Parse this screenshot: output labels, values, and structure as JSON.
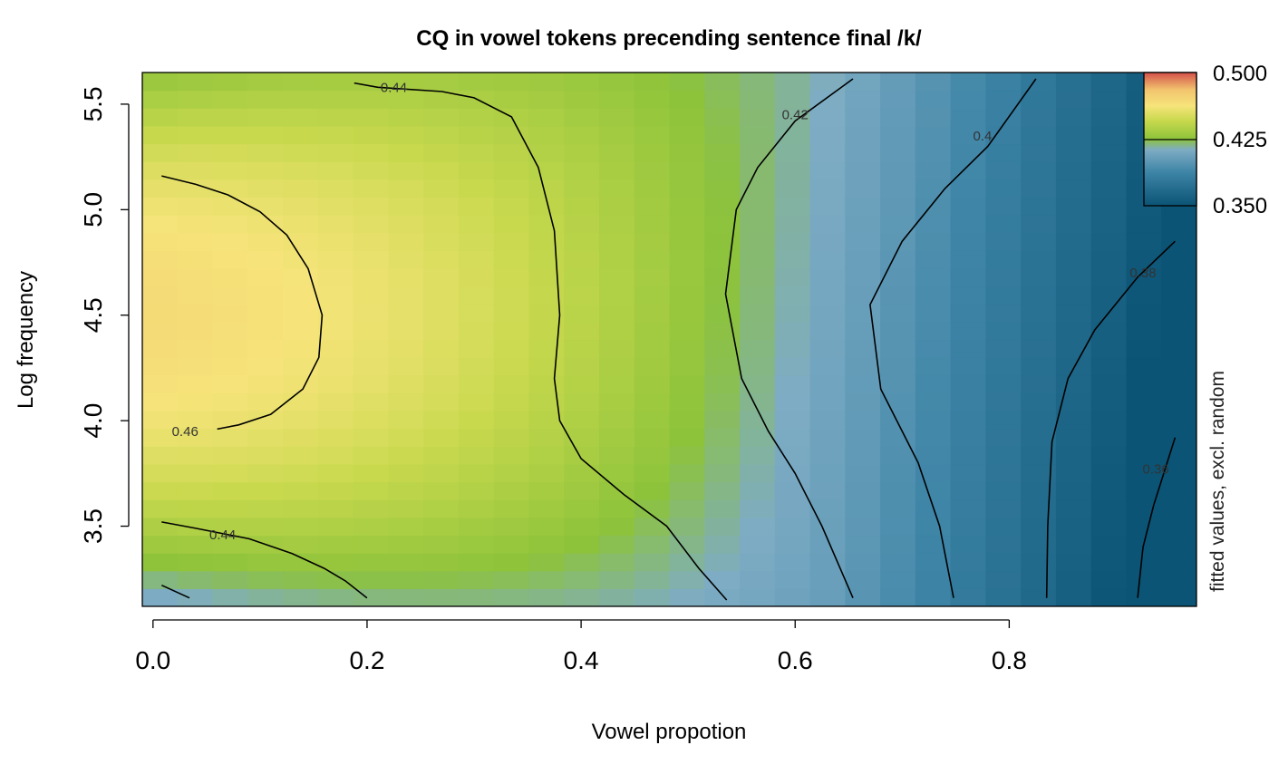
{
  "chart_data": {
    "type": "heatmap",
    "title": "CQ in vowel tokens precending sentence final /k/",
    "xlabel": "Vowel propotion",
    "ylabel": "Log frequency",
    "side_label": "fitted values, excl. random",
    "xlim": [
      -0.01,
      0.975
    ],
    "ylim": [
      3.12,
      5.65
    ],
    "x_ticks": [
      0.0,
      0.2,
      0.4,
      0.6,
      0.8
    ],
    "x_tick_labels": [
      "0.0",
      "0.2",
      "0.4",
      "0.6",
      "0.8"
    ],
    "y_ticks": [
      3.5,
      4.0,
      4.5,
      5.0,
      5.5
    ],
    "y_tick_labels": [
      "3.5",
      "4.0",
      "4.5",
      "5.0",
      "5.5"
    ],
    "color_scale": {
      "min": 0.35,
      "max": 0.5,
      "ticks": [
        0.5,
        0.425,
        0.35
      ],
      "tick_labels": [
        "0.500",
        "0.425",
        "0.350"
      ],
      "colors": [
        "#0b5475",
        "#3d84a6",
        "#7eacc4",
        "#8dc33a",
        "#c9d94e",
        "#f6e47a",
        "#f2c46e",
        "#d4504a"
      ]
    },
    "contours": [
      {
        "level": 0.46,
        "label": "0.46",
        "points": [
          [
            0.008,
            5.16
          ],
          [
            0.04,
            5.12
          ],
          [
            0.07,
            5.07
          ],
          [
            0.1,
            4.99
          ],
          [
            0.125,
            4.88
          ],
          [
            0.145,
            4.72
          ],
          [
            0.158,
            4.5
          ],
          [
            0.155,
            4.3
          ],
          [
            0.14,
            4.15
          ],
          [
            0.11,
            4.03
          ],
          [
            0.08,
            3.98
          ],
          [
            0.06,
            3.96
          ]
        ],
        "label_at": [
          0.03,
          3.95
        ]
      },
      {
        "level": 0.44,
        "label": "0.44",
        "points": [
          [
            0.188,
            5.6
          ],
          [
            0.21,
            5.58
          ],
          [
            0.27,
            5.56
          ],
          [
            0.3,
            5.53
          ],
          [
            0.335,
            5.44
          ],
          [
            0.36,
            5.2
          ],
          [
            0.375,
            4.9
          ],
          [
            0.38,
            4.5
          ],
          [
            0.375,
            4.2
          ],
          [
            0.38,
            4.0
          ],
          [
            0.4,
            3.82
          ],
          [
            0.44,
            3.65
          ],
          [
            0.48,
            3.5
          ],
          [
            0.51,
            3.3
          ],
          [
            0.536,
            3.15
          ]
        ],
        "label_at": [
          0.225,
          5.58
        ]
      },
      {
        "level": 0.44,
        "label": "0.44",
        "points": [
          [
            0.008,
            3.52
          ],
          [
            0.04,
            3.49
          ],
          [
            0.09,
            3.44
          ],
          [
            0.13,
            3.37
          ],
          [
            0.16,
            3.3
          ],
          [
            0.18,
            3.24
          ],
          [
            0.2,
            3.16
          ]
        ],
        "label_at": [
          0.065,
          3.46
        ]
      },
      {
        "level": 0.44,
        "label": "",
        "points": [
          [
            0.008,
            3.22
          ],
          [
            0.034,
            3.16
          ]
        ],
        "label_at": null
      },
      {
        "level": 0.42,
        "label": "0.42",
        "points": [
          [
            0.654,
            5.62
          ],
          [
            0.6,
            5.42
          ],
          [
            0.565,
            5.2
          ],
          [
            0.545,
            5.0
          ],
          [
            0.535,
            4.6
          ],
          [
            0.55,
            4.2
          ],
          [
            0.575,
            3.95
          ],
          [
            0.6,
            3.75
          ],
          [
            0.625,
            3.5
          ],
          [
            0.654,
            3.16
          ]
        ],
        "label_at": [
          0.6,
          5.45
        ]
      },
      {
        "level": 0.4,
        "label": "0.4",
        "points": [
          [
            0.825,
            5.62
          ],
          [
            0.78,
            5.3
          ],
          [
            0.74,
            5.1
          ],
          [
            0.7,
            4.85
          ],
          [
            0.67,
            4.55
          ],
          [
            0.68,
            4.15
          ],
          [
            0.715,
            3.8
          ],
          [
            0.735,
            3.5
          ],
          [
            0.748,
            3.16
          ]
        ],
        "label_at": [
          0.775,
          5.35
        ]
      },
      {
        "level": 0.38,
        "label": "0.38",
        "points": [
          [
            0.955,
            4.85
          ],
          [
            0.92,
            4.68
          ],
          [
            0.88,
            4.43
          ],
          [
            0.855,
            4.2
          ],
          [
            0.84,
            3.9
          ],
          [
            0.836,
            3.5
          ],
          [
            0.835,
            3.16
          ]
        ],
        "label_at": [
          0.925,
          4.7
        ]
      },
      {
        "level": 0.36,
        "label": "0.36",
        "points": [
          [
            0.955,
            3.92
          ],
          [
            0.935,
            3.6
          ],
          [
            0.925,
            3.4
          ],
          [
            0.92,
            3.16
          ]
        ],
        "label_at": [
          0.937,
          3.77
        ]
      }
    ]
  }
}
